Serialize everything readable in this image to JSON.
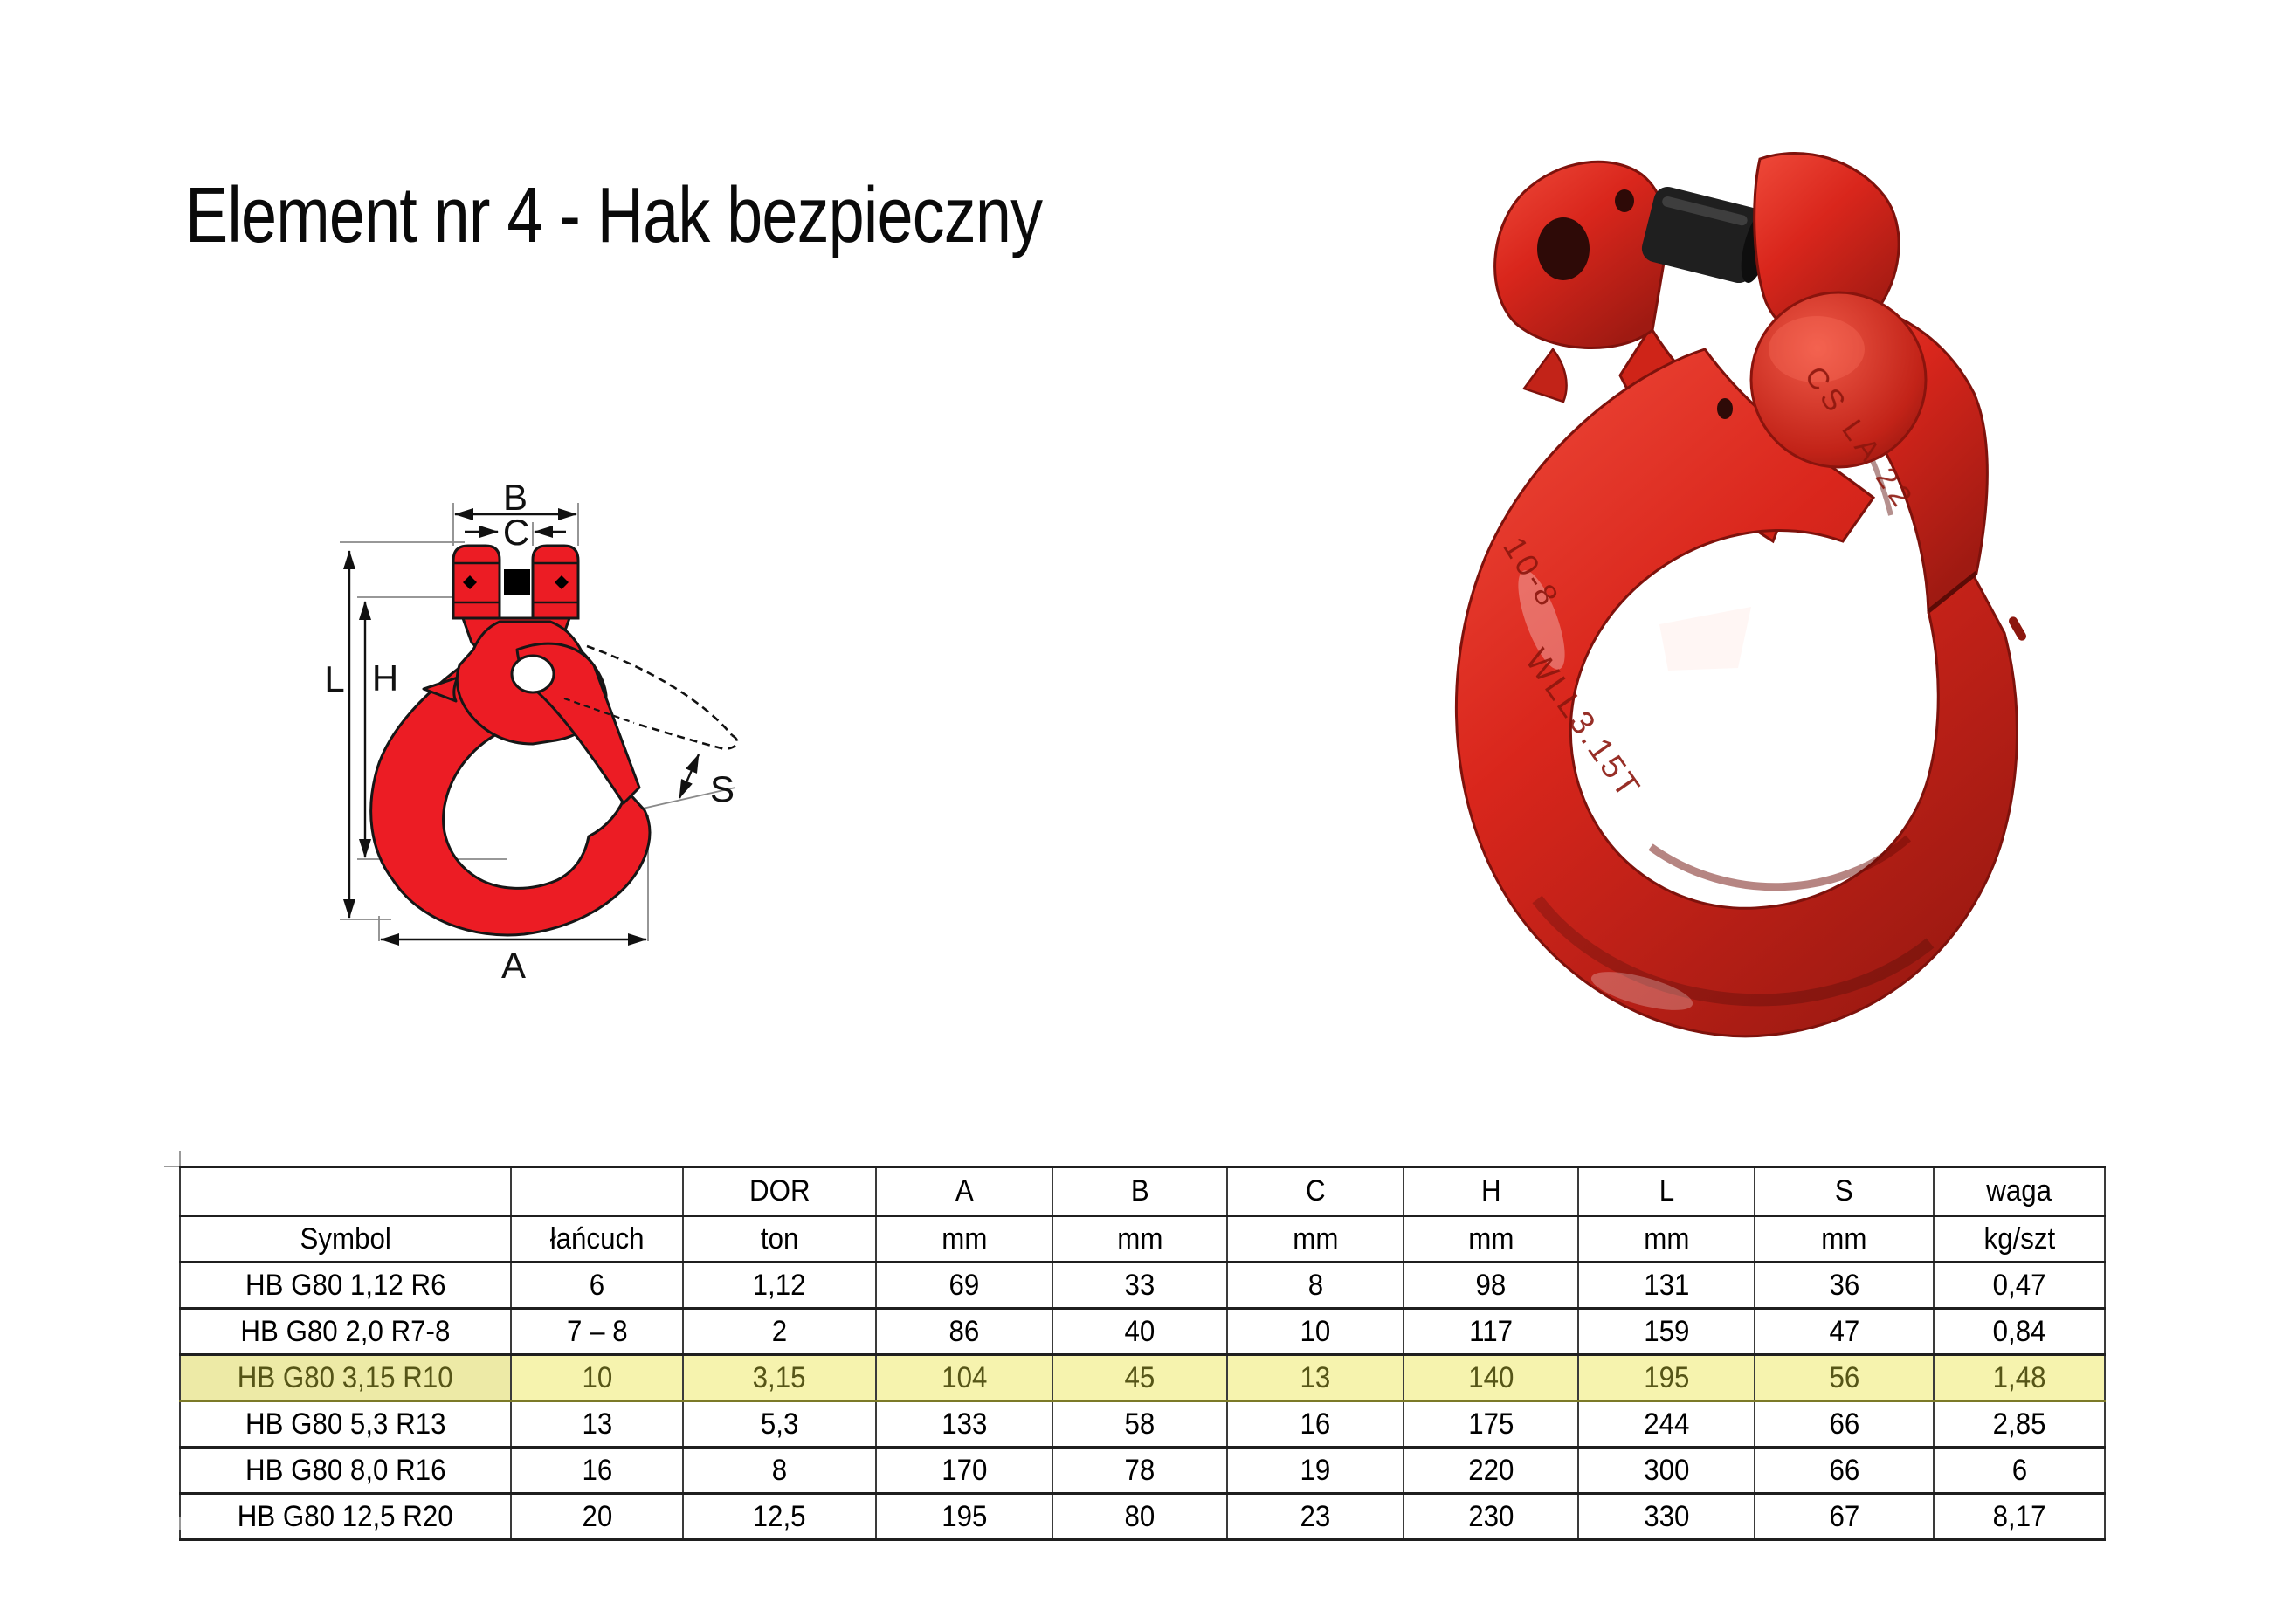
{
  "page": {
    "title": "Element nr 4 - Hak bezpieczny",
    "background": "#ffffff"
  },
  "diagram": {
    "description": "technical-drawing-safety-hook",
    "accent_red": "#ec1c24",
    "labels": {
      "B": "B",
      "C": "C",
      "L": "L",
      "H": "H",
      "S": "S",
      "A": "A"
    }
  },
  "photo": {
    "description": "red-clevis-self-locking-hook",
    "red": "#d9261c",
    "markings": {
      "latch": "CS LA 22",
      "grade": "10-8",
      "wll": "WLL3.15T"
    }
  },
  "table": {
    "header_row1": [
      "",
      "",
      "DOR",
      "A",
      "B",
      "C",
      "H",
      "L",
      "S",
      "waga"
    ],
    "header_row2": [
      "Symbol",
      "łańcuch",
      "ton",
      "mm",
      "mm",
      "mm",
      "mm",
      "mm",
      "mm",
      "kg/szt"
    ],
    "rows": [
      {
        "symbol": "HB G80 1,12 R6",
        "cells": [
          "6",
          "1,12",
          "69",
          "33",
          "8",
          "98",
          "131",
          "36",
          "0,47"
        ],
        "highlighted": false
      },
      {
        "symbol": "HB G80 2,0 R7-8",
        "cells": [
          "7 – 8",
          "2",
          "86",
          "40",
          "10",
          "117",
          "159",
          "47",
          "0,84"
        ],
        "highlighted": false
      },
      {
        "symbol": "HB G80 3,15 R10",
        "cells": [
          "10",
          "3,15",
          "104",
          "45",
          "13",
          "140",
          "195",
          "56",
          "1,48"
        ],
        "highlighted": true
      },
      {
        "symbol": "HB G80 5,3 R13",
        "cells": [
          "13",
          "5,3",
          "133",
          "58",
          "16",
          "175",
          "244",
          "66",
          "2,85"
        ],
        "highlighted": false
      },
      {
        "symbol": "HB G80 8,0 R16",
        "cells": [
          "16",
          "8",
          "170",
          "78",
          "19",
          "220",
          "300",
          "66",
          "6"
        ],
        "highlighted": false
      },
      {
        "symbol": "HB G80 12,5 R20",
        "cells": [
          "20",
          "12,5",
          "195",
          "80",
          "23",
          "230",
          "330",
          "67",
          "8,17"
        ],
        "highlighted": false
      }
    ],
    "colors": {
      "header_gray": "#d9d9d9",
      "highlight_bg": "#f6f3ae",
      "highlight_symbol_bg": "#edeaa6",
      "highlight_text": "#565517"
    }
  }
}
